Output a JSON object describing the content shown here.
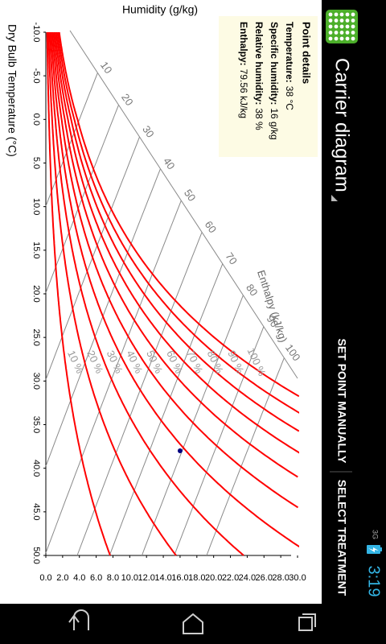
{
  "status_bar": {
    "network": "3G",
    "time": "3:19"
  },
  "action_bar": {
    "title": "Carrier diagram",
    "actions": [
      "SET POINT MANUALLY",
      "SELECT TREATMENT"
    ]
  },
  "chart_data": {
    "type": "psychrometric",
    "x_label": "Dry Bulb Temperature (°C)",
    "y_label": "Humidity (g/kg)",
    "xlim": [
      -10,
      50
    ],
    "xticks": [
      {
        "value": -10,
        "label": "-10.0"
      },
      {
        "value": -5,
        "label": "-5.0"
      },
      {
        "value": 0,
        "label": "0.0"
      },
      {
        "value": 5,
        "label": "5.0"
      },
      {
        "value": 10,
        "label": "10.0"
      },
      {
        "value": 15,
        "label": "15.0"
      },
      {
        "value": 20,
        "label": "20.0"
      },
      {
        "value": 25,
        "label": "25.0"
      },
      {
        "value": 30,
        "label": "30.0"
      },
      {
        "value": 35,
        "label": "35.0"
      },
      {
        "value": 40,
        "label": "40.0"
      },
      {
        "value": 45,
        "label": "45.0"
      },
      {
        "value": 50,
        "label": "50.0"
      }
    ],
    "ylim": [
      0,
      30
    ],
    "yticks": [
      {
        "value": 0,
        "label": "0.0"
      },
      {
        "value": 2,
        "label": "2.0"
      },
      {
        "value": 4,
        "label": "4.0"
      },
      {
        "value": 6,
        "label": "6.0"
      },
      {
        "value": 8,
        "label": "8.0"
      },
      {
        "value": 10,
        "label": "10.0"
      },
      {
        "value": 12,
        "label": "12.0"
      },
      {
        "value": 14,
        "label": "14.0"
      },
      {
        "value": 16,
        "label": "16.0"
      },
      {
        "value": 18,
        "label": "18.0"
      },
      {
        "value": 20,
        "label": "20.0"
      },
      {
        "value": 22,
        "label": "22.0"
      },
      {
        "value": 24,
        "label": "24.0"
      },
      {
        "value": 26,
        "label": "26.0"
      },
      {
        "value": 28,
        "label": "28.0"
      },
      {
        "value": 30,
        "label": "30.0"
      }
    ],
    "relative_humidity": {
      "values": [
        10,
        20,
        30,
        40,
        50,
        60,
        70,
        80,
        90,
        100
      ],
      "value_labels": [
        "10 %",
        "20 %",
        "30 %",
        "40 %",
        "50 %",
        "60 %",
        "70 %",
        "80 %",
        "90 %",
        "100 %"
      ],
      "color": "#ff0000"
    },
    "enthalpy": {
      "label": "Enthalpy (kJ/kg)",
      "values": [
        10,
        20,
        30,
        40,
        50,
        60,
        70,
        80,
        90,
        100
      ],
      "color": "#8a8a8a"
    },
    "point": {
      "x": 38,
      "y": 16,
      "color": "#000080"
    }
  },
  "point_details": {
    "title": "Point details",
    "rows": [
      {
        "label": "Temperature:",
        "value": "38 °C"
      },
      {
        "label": "Specific humidity:",
        "value": "16 g/kg"
      },
      {
        "label": "Relative humidity:",
        "value": "38 %"
      },
      {
        "label": "Enthalpy:",
        "value": "79.56 kJ/kg"
      }
    ]
  }
}
